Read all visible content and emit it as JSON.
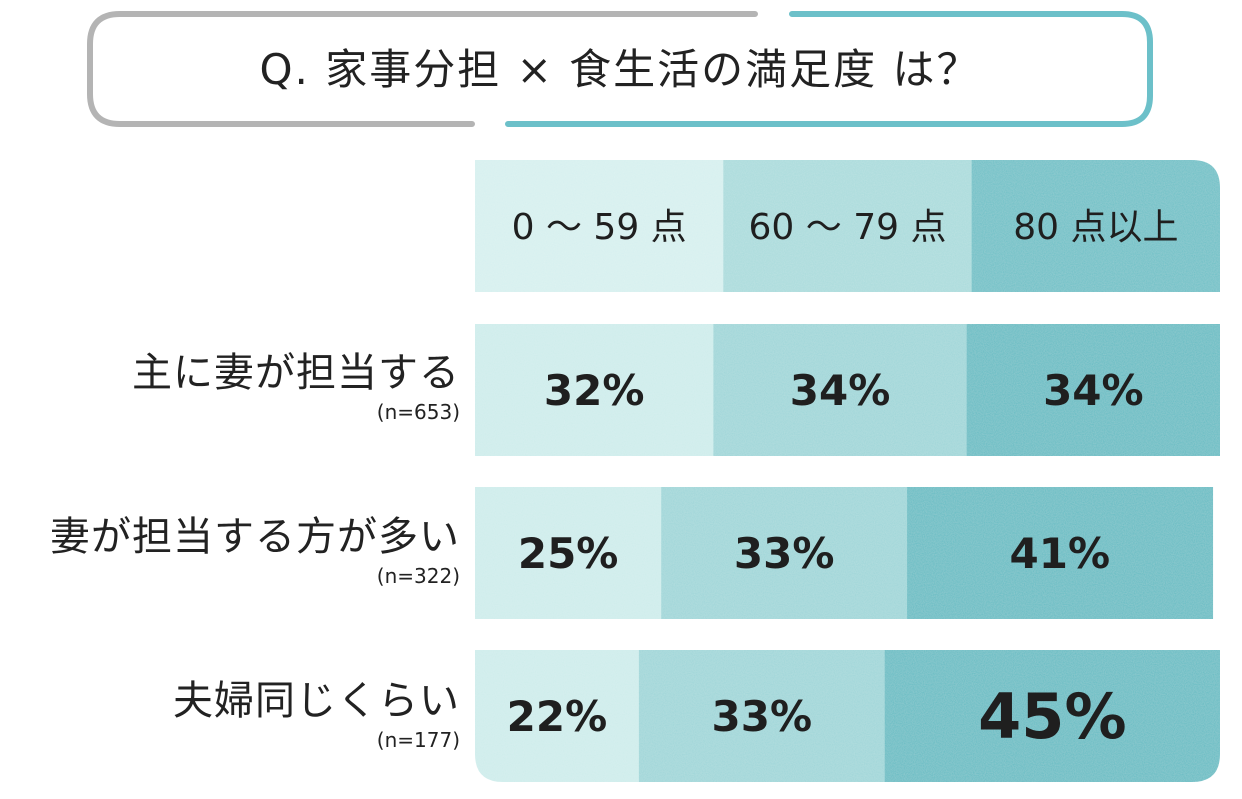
{
  "title": "Q. 家事分担 × 食生活の満足度 は？",
  "colors": {
    "seg1": "#cdeceb",
    "seg2": "#9ed6d8",
    "seg3": "#63bcc3",
    "header1": "#d6f0ef",
    "header2": "#a9dbdc",
    "header3": "#6cc0c6",
    "frame_gray": "#b4b4b4",
    "frame_teal": "#6cc0c9",
    "text": "#1f1f1f"
  },
  "chart_data": {
    "type": "bar",
    "orientation": "horizontal",
    "stacked": true,
    "categories": [
      "主に妻が担当する",
      "妻が担当する方が多い",
      "夫婦同じくらい"
    ],
    "category_notes": [
      "(n=653)",
      "(n=322)",
      "(n=177)"
    ],
    "series": [
      {
        "name": "0 〜 59 点",
        "values": [
          32,
          25,
          22
        ]
      },
      {
        "name": "60 〜 79 点",
        "values": [
          34,
          33,
          33
        ]
      },
      {
        "name": "80 点以上",
        "values": [
          34,
          41,
          45
        ]
      }
    ],
    "value_labels": [
      [
        "32%",
        "34%",
        "34%"
      ],
      [
        "25%",
        "33%",
        "41%"
      ],
      [
        "22%",
        "33%",
        "45%"
      ]
    ],
    "highlight": {
      "row": 2,
      "series": 2
    },
    "xlim": [
      0,
      100
    ]
  }
}
